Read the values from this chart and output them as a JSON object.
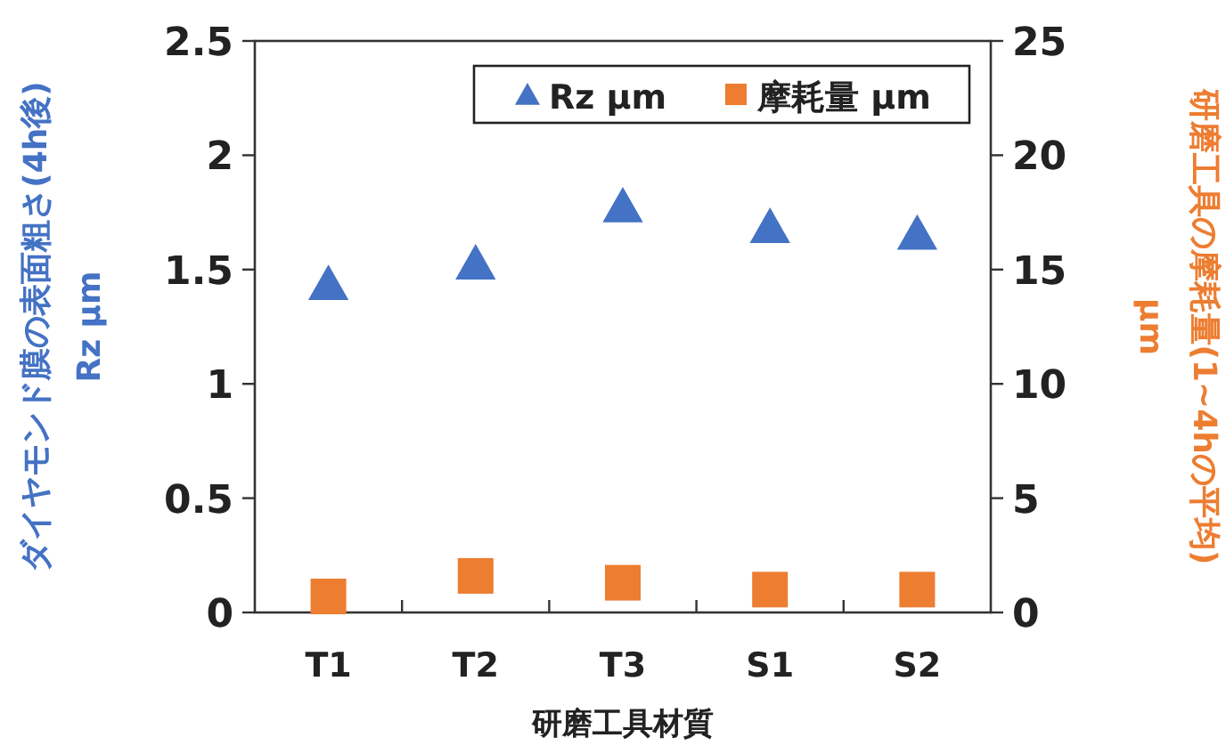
{
  "chart_data": {
    "type": "scatter",
    "categories": [
      "T1",
      "T2",
      "T3",
      "S1",
      "S2"
    ],
    "xlabel": "研磨工具材質",
    "ylabel": "ダイヤモンド膜の表面粗さ(4h後)\nRz μm",
    "y2label": "研磨工具の摩耗量(1~4hの平均)\nμm",
    "ylim": [
      0,
      2.5
    ],
    "yticks": [
      0,
      0.5,
      1,
      1.5,
      2,
      2.5
    ],
    "y2lim": [
      0,
      25
    ],
    "y2ticks": [
      0,
      5,
      10,
      15,
      20,
      25
    ],
    "legend": "top right",
    "series": [
      {
        "name": "Rz μm",
        "color": "#4472c4",
        "marker": "triangle",
        "values": [
          1.44,
          1.53,
          1.78,
          1.69,
          1.66
        ]
      },
      {
        "name": "摩耗量 μm",
        "color": "#ed7d31",
        "marker": "square",
        "axis": "y2",
        "values": [
          0.7,
          1.6,
          1.3,
          1.0,
          1.0
        ]
      }
    ]
  }
}
